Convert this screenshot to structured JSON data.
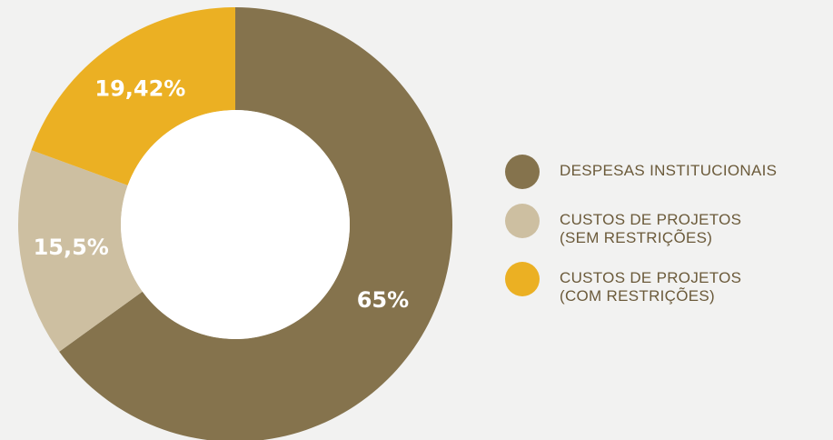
{
  "chart_data": {
    "type": "pie",
    "categories": [
      [
        "DESPESAS INSTITUCIONAIS"
      ],
      [
        "CUSTOS DE PROJETOS",
        "(SEM RESTRIÇÕES)"
      ],
      [
        "CUSTOS DE PROJETOS",
        "(COM RESTRIÇÕES)"
      ]
    ],
    "values": [
      65,
      15.5,
      19.42
    ],
    "data_labels": [
      "65%",
      "15,5%",
      "19,42%"
    ],
    "colors": [
      "#85734d",
      "#cdbfa1",
      "#ebb023"
    ],
    "donut": true,
    "start_angle_deg": 0,
    "direction": "clockwise",
    "legend_position": "right"
  }
}
